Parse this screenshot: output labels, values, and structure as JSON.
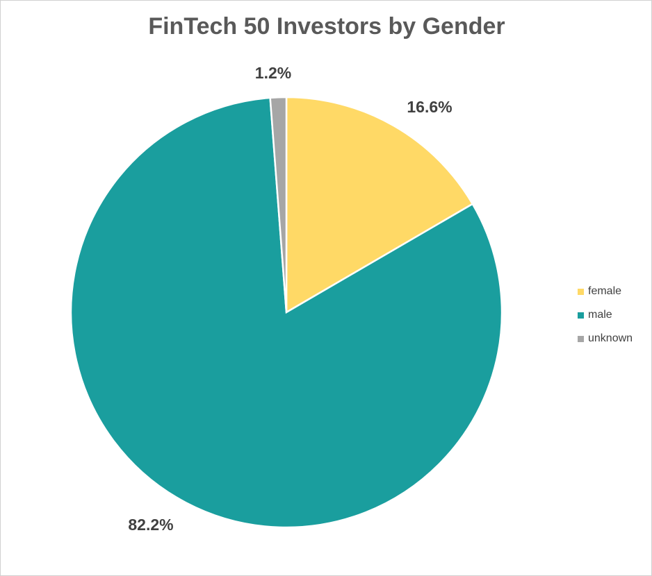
{
  "chart_data": {
    "type": "pie",
    "title": "FinTech 50 Investors by Gender",
    "categories": [
      "female",
      "male",
      "unknown"
    ],
    "values": [
      16.6,
      82.2,
      1.2
    ],
    "labels": [
      "16.6%",
      "82.2%",
      "1.2%"
    ],
    "colors": [
      "#FFD966",
      "#1A9E9E",
      "#A6A6A6"
    ],
    "legend_position": "right"
  }
}
